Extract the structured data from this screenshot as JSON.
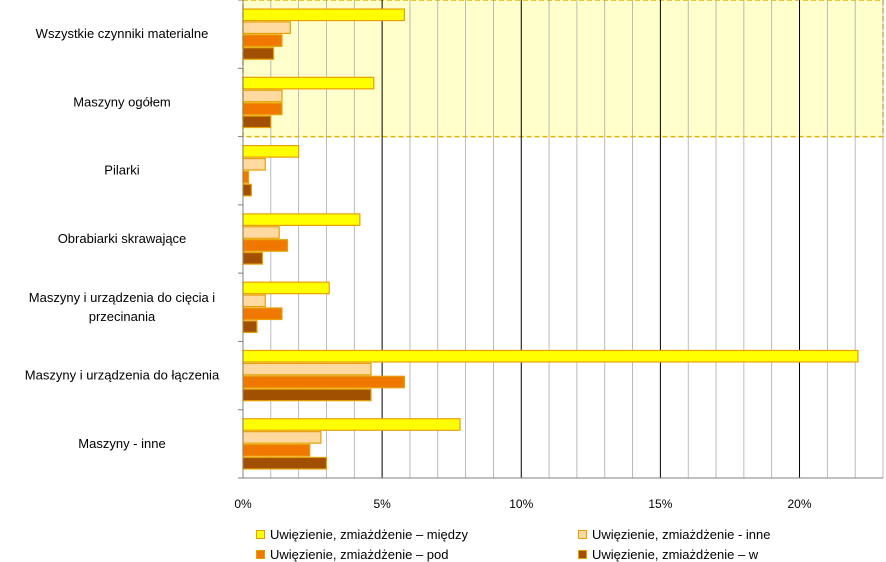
{
  "chart_data": {
    "type": "bar",
    "orientation": "horizontal",
    "categories": [
      "Wszystkie czynniki materialne",
      "Maszyny ogółem",
      "Pilarki",
      "Obrabiarki skrawające",
      [
        "Maszyny i urządzenia do cięcia i",
        "przecinania"
      ],
      "Maszyny i urządzenia do łączenia",
      "Maszyny - inne"
    ],
    "series": [
      {
        "name": "Uwięzienie, zmiażdżenie – między",
        "color": "#FFFF00",
        "values": [
          5.8,
          4.7,
          2.0,
          4.2,
          3.1,
          22.1,
          7.8
        ]
      },
      {
        "name": "Uwięzienie, zmiażdżenie - inne",
        "color": "#FFD9A0",
        "values": [
          1.7,
          1.4,
          0.8,
          1.3,
          0.8,
          4.6,
          2.8
        ]
      },
      {
        "name": "Uwięzienie, zmiażdżenie – pod",
        "color": "#F07800",
        "values": [
          1.4,
          1.4,
          0.2,
          1.6,
          1.4,
          5.8,
          2.4
        ]
      },
      {
        "name": "Uwięzienie, zmiażdżenie – w",
        "color": "#A05000",
        "values": [
          1.1,
          1.0,
          0.3,
          0.7,
          0.5,
          4.6,
          3.0
        ]
      }
    ],
    "xlim": [
      0,
      23
    ],
    "xticks": [
      0,
      5,
      10,
      15,
      20
    ],
    "xtick_labels": [
      "0%",
      "5%",
      "10%",
      "15%",
      "20%"
    ],
    "grid": true,
    "legend_position": "bottom",
    "highlight_region": {
      "categories": [
        "Wszystkie czynniki materialne",
        "Maszyny ogółem"
      ],
      "fill": "#FFFFCC",
      "border": "#E8B000"
    }
  }
}
